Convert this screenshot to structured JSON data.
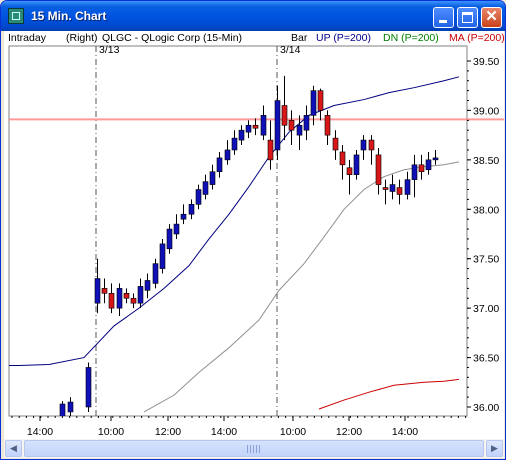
{
  "window": {
    "title": "15 Min. Chart"
  },
  "header": {
    "mode": "Intraday",
    "scale": "(Right)",
    "symbol": "QLGC - QLogic Corp  (15-Min)",
    "type": "Bar",
    "up": "UP (P=200)",
    "dn": "DN (P=200)",
    "ma": "MA (P=200)"
  },
  "colors": {
    "up_candle": "#1010b8",
    "down_candle": "#d81818",
    "upper_band": "#000080",
    "lower_band": "#909090",
    "ma": "#cc0000",
    "hline": "#ff8080"
  },
  "chart_data": {
    "type": "candlestick",
    "ylim": [
      35.95,
      39.55
    ],
    "y_ticks": [
      "39.50",
      "39.00",
      "38.50",
      "38.00",
      "37.50",
      "37.00",
      "36.50",
      "36.00"
    ],
    "x_ticks": [
      "14:00",
      "10:00",
      "12:00",
      "14:00",
      "10:00",
      "12:00",
      "14:00"
    ],
    "date_markers": [
      "3/13",
      "3/14"
    ],
    "reference_line": 38.91,
    "candles": [
      [
        35.88,
        36.03,
        35.85,
        36.06
      ],
      [
        35.95,
        36.05,
        35.9,
        36.1
      ],
      [
        36.0,
        36.4,
        35.95,
        36.45
      ],
      [
        37.05,
        37.3,
        36.95,
        37.5
      ],
      [
        37.2,
        37.15,
        37.05,
        37.3
      ],
      [
        37.15,
        37.0,
        36.95,
        37.25
      ],
      [
        37.0,
        37.2,
        36.92,
        37.25
      ],
      [
        37.15,
        37.1,
        37.05,
        37.2
      ],
      [
        37.1,
        37.05,
        37.0,
        37.15
      ],
      [
        37.05,
        37.22,
        37.0,
        37.3
      ],
      [
        37.18,
        37.28,
        37.1,
        37.35
      ],
      [
        37.25,
        37.45,
        37.2,
        37.5
      ],
      [
        37.4,
        37.65,
        37.35,
        37.7
      ],
      [
        37.6,
        37.8,
        37.55,
        37.85
      ],
      [
        37.75,
        37.85,
        37.7,
        37.95
      ],
      [
        37.9,
        37.95,
        37.85,
        38.05
      ],
      [
        37.95,
        38.05,
        37.9,
        38.1
      ],
      [
        38.05,
        38.2,
        38.0,
        38.25
      ],
      [
        38.15,
        38.28,
        38.1,
        38.35
      ],
      [
        38.25,
        38.38,
        38.2,
        38.45
      ],
      [
        38.38,
        38.52,
        38.32,
        38.58
      ],
      [
        38.5,
        38.6,
        38.45,
        38.7
      ],
      [
        38.6,
        38.72,
        38.55,
        38.8
      ],
      [
        38.7,
        38.8,
        38.65,
        38.85
      ],
      [
        38.78,
        38.85,
        38.72,
        38.9
      ],
      [
        38.85,
        38.82,
        38.75,
        38.92
      ],
      [
        38.75,
        38.95,
        38.7,
        39.05
      ],
      [
        38.7,
        38.5,
        38.4,
        38.9
      ],
      [
        38.6,
        39.1,
        38.5,
        39.25
      ],
      [
        39.05,
        38.85,
        38.7,
        39.35
      ],
      [
        38.9,
        38.8,
        38.65,
        39.0
      ],
      [
        38.75,
        38.85,
        38.6,
        38.95
      ],
      [
        38.8,
        38.95,
        38.7,
        39.05
      ],
      [
        38.95,
        39.2,
        38.85,
        39.25
      ],
      [
        39.2,
        39.0,
        38.9,
        39.22
      ],
      [
        38.95,
        38.75,
        38.65,
        39.0
      ],
      [
        38.72,
        38.6,
        38.5,
        38.8
      ],
      [
        38.58,
        38.45,
        38.3,
        38.65
      ],
      [
        38.42,
        38.35,
        38.15,
        38.5
      ],
      [
        38.35,
        38.55,
        38.3,
        38.6
      ],
      [
        38.6,
        38.7,
        38.5,
        38.75
      ],
      [
        38.7,
        38.6,
        38.45,
        38.75
      ],
      [
        38.55,
        38.25,
        38.15,
        38.62
      ],
      [
        38.22,
        38.2,
        38.05,
        38.3
      ],
      [
        38.18,
        38.25,
        38.1,
        38.35
      ],
      [
        38.22,
        38.15,
        38.05,
        38.3
      ],
      [
        38.15,
        38.3,
        38.1,
        38.38
      ],
      [
        38.3,
        38.45,
        38.12,
        38.55
      ],
      [
        38.45,
        38.38,
        38.3,
        38.55
      ],
      [
        38.4,
        38.5,
        38.35,
        38.58
      ],
      [
        38.5,
        38.52,
        38.45,
        38.6
      ]
    ],
    "upper_band": [
      [
        -5,
        36.42
      ],
      [
        15,
        36.42
      ],
      [
        45,
        36.43
      ],
      [
        80,
        36.5
      ],
      [
        110,
        36.82
      ],
      [
        135,
        37.0
      ],
      [
        160,
        37.2
      ],
      [
        185,
        37.43
      ],
      [
        205,
        37.7
      ],
      [
        225,
        37.95
      ],
      [
        245,
        38.23
      ],
      [
        265,
        38.53
      ],
      [
        285,
        38.78
      ],
      [
        305,
        38.95
      ],
      [
        330,
        39.05
      ],
      [
        360,
        39.11
      ],
      [
        385,
        39.18
      ],
      [
        410,
        39.23
      ],
      [
        440,
        39.3
      ],
      [
        455,
        39.34
      ]
    ],
    "lower_band": [
      [
        140,
        35.95
      ],
      [
        170,
        36.12
      ],
      [
        195,
        36.35
      ],
      [
        225,
        36.6
      ],
      [
        255,
        36.88
      ],
      [
        275,
        37.18
      ],
      [
        300,
        37.45
      ],
      [
        320,
        37.72
      ],
      [
        340,
        38.0
      ],
      [
        360,
        38.2
      ],
      [
        380,
        38.33
      ],
      [
        400,
        38.4
      ],
      [
        420,
        38.43
      ],
      [
        440,
        38.45
      ],
      [
        455,
        38.48
      ]
    ],
    "ma_line": [
      [
        315,
        35.98
      ],
      [
        340,
        36.07
      ],
      [
        365,
        36.15
      ],
      [
        390,
        36.22
      ],
      [
        420,
        36.25
      ],
      [
        440,
        36.26
      ],
      [
        455,
        36.28
      ]
    ]
  }
}
